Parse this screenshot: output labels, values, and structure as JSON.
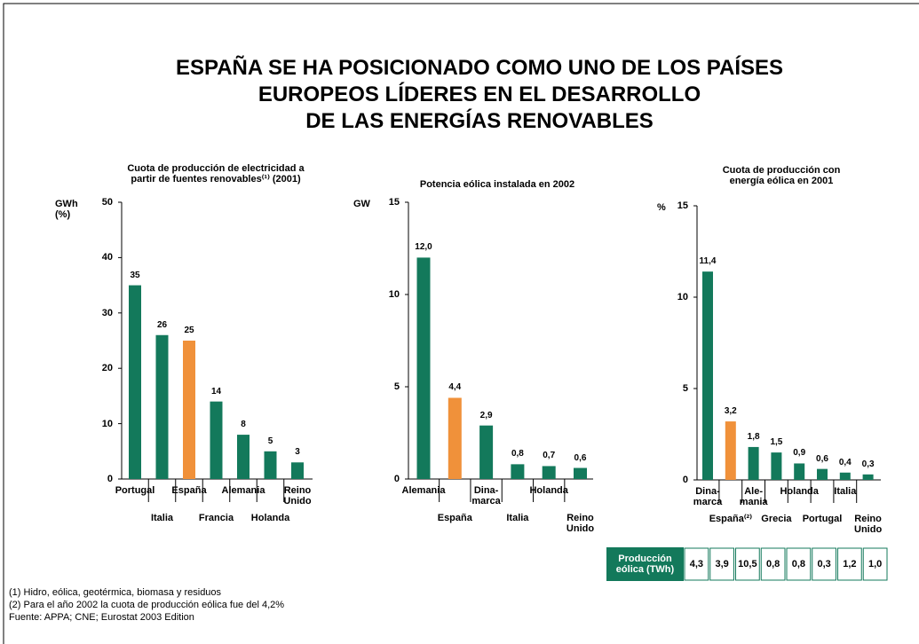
{
  "title": "ESPAÑA SE HA POSICIONADO COMO UNO DE LOS PAÍSES\nEUROPEOS LÍDERES EN EL DESARROLLO\nDE LAS ENERGÍAS RENOVABLES",
  "footnotes": [
    "(1) Hidro, eólica, geotérmica, biomasa y residuos",
    "(2) Para el año 2002 la cuota de producción eólica fue del 4,2%",
    "Fuente: APPA; CNE; Eurostat 2003 Edition"
  ],
  "chart_data": [
    {
      "type": "bar",
      "title": "Cuota de producción de electricidad a\npartir de fuentes renovables⁽¹⁾ (2001)",
      "y_label": "GWh\n(%)",
      "categories": [
        "Portugal",
        "Italia",
        "España",
        "Francia",
        "Alemania",
        "Holanda",
        "Reino\nUnido"
      ],
      "values": [
        35,
        26,
        25,
        14,
        8,
        5,
        3
      ],
      "colors": [
        "#13795b",
        "#13795b",
        "#f0913a",
        "#13795b",
        "#13795b",
        "#13795b",
        "#13795b"
      ],
      "ylim": [
        0,
        50
      ],
      "yticks": [
        0,
        10,
        20,
        30,
        40,
        50
      ]
    },
    {
      "type": "bar",
      "title": "Potencia eólica instalada en 2002",
      "y_label": "GW",
      "categories": [
        "Alemania",
        "España",
        "Dina-\nmarca",
        "Italia",
        "Holanda",
        "Reino\nUnido"
      ],
      "values": [
        12.0,
        4.4,
        2.9,
        0.8,
        0.7,
        0.6
      ],
      "value_labels": [
        "12,0",
        "4,4",
        "2,9",
        "0,8",
        "0,7",
        "0,6"
      ],
      "colors": [
        "#13795b",
        "#f0913a",
        "#13795b",
        "#13795b",
        "#13795b",
        "#13795b"
      ],
      "ylim": [
        0,
        15
      ],
      "yticks": [
        0,
        5,
        10,
        15
      ]
    },
    {
      "type": "bar",
      "title": "Cuota de producción con\nenergía eólica en 2001",
      "y_label": "%",
      "categories": [
        "Dina-\nmarca",
        "España⁽²⁾",
        "Ale-\nmania",
        "Grecia",
        "Holanda",
        "Portugal",
        "Italia",
        "Reino\nUnido"
      ],
      "values": [
        11.4,
        3.2,
        1.8,
        1.5,
        0.9,
        0.6,
        0.4,
        0.3
      ],
      "value_labels": [
        "11,4",
        "3,2",
        "1,8",
        "1,5",
        "0,9",
        "0,6",
        "0,4",
        "0,3"
      ],
      "colors": [
        "#13795b",
        "#f0913a",
        "#13795b",
        "#13795b",
        "#13795b",
        "#13795b",
        "#13795b",
        "#13795b"
      ],
      "ylim": [
        0,
        15
      ],
      "yticks": [
        0,
        5,
        10,
        15
      ],
      "table": {
        "header": "Producción\neólica (TWh)",
        "cells": [
          "4,3",
          "3,9",
          "10,5",
          "0,8",
          "0,8",
          "0,3",
          "1,2",
          "1,0"
        ]
      }
    }
  ]
}
